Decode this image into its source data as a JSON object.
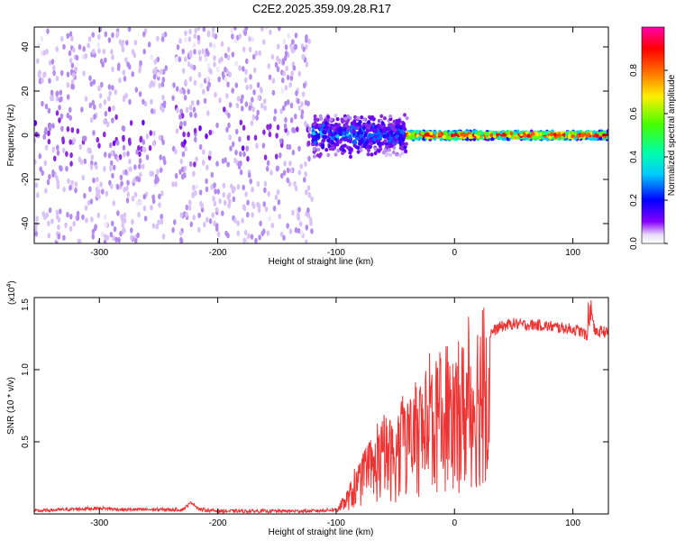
{
  "chart_data": [
    {
      "type": "heatmap",
      "title": "C2E2.2025.359.09.28.R17",
      "xlabel": "Height of straight line (km)",
      "ylabel": "Frequency (Hz)",
      "xlim": [
        -355,
        130
      ],
      "ylim": [
        -49,
        49
      ],
      "xticks": [
        -300,
        -200,
        -100,
        0,
        100
      ],
      "yticks": [
        -40,
        -20,
        0,
        20,
        40
      ],
      "colorbar": {
        "label": "Normalized spectral amplitude",
        "ticks": [
          0.0,
          0.2,
          0.4,
          0.6,
          0.8
        ],
        "range": [
          0,
          1
        ],
        "colormap": "rainbow (violet to magenta)"
      },
      "regions": [
        {
          "x": [
            -355,
            -243
          ],
          "freq_spread": 49,
          "level": 0.15,
          "note": "broadband scattered noise"
        },
        {
          "x": [
            -238,
            -120
          ],
          "freq_spread": 49,
          "level": 0.15,
          "note": "broadband scattered noise"
        },
        {
          "x": [
            -120,
            -40
          ],
          "freq_center": 0,
          "freq_halfwidth": 10,
          "level": 0.4
        },
        {
          "x": [
            -40,
            130
          ],
          "freq_center": 0,
          "freq_halfwidth": 2,
          "level": 0.9,
          "note": "narrow band near 0 Hz"
        }
      ]
    },
    {
      "type": "line",
      "xlabel": "Height of straight line (km)",
      "ylabel": "SNR (10 * v/v)",
      "yscale_note": "(x10",
      "yscale_exp": "4",
      "xlim": [
        -355,
        130
      ],
      "ylim": [
        0,
        1.5
      ],
      "xticks": [
        -300,
        -200,
        -100,
        0,
        100
      ],
      "yticks": [
        "0.5",
        "1.0",
        "1.5"
      ],
      "series": [
        {
          "color": "#ee3333",
          "x": [
            -355,
            -330,
            -300,
            -280,
            -250,
            -230,
            -222,
            -215,
            -200,
            -180,
            -150,
            -120,
            -100,
            -95,
            -90,
            -80,
            -70,
            -60,
            -55,
            -50,
            -45,
            -40,
            -35,
            -30,
            -25,
            -20,
            -15,
            -10,
            -5,
            0,
            5,
            10,
            15,
            20,
            25,
            30,
            35,
            40,
            50,
            60,
            70,
            80,
            90,
            100,
            105,
            110,
            113,
            115,
            118,
            120,
            125,
            130
          ],
          "y": [
            0.02,
            0.03,
            0.04,
            0.03,
            0.03,
            0.03,
            0.08,
            0.03,
            0.02,
            0.02,
            0.02,
            0.02,
            0.03,
            0.08,
            0.15,
            0.3,
            0.4,
            0.55,
            0.55,
            0.5,
            0.65,
            0.7,
            0.6,
            0.8,
            0.75,
            0.9,
            0.85,
            0.95,
            1.0,
            0.9,
            0.95,
            1.02,
            1.08,
            1.15,
            1.2,
            1.25,
            1.28,
            1.3,
            1.32,
            1.31,
            1.31,
            1.3,
            1.29,
            1.28,
            1.27,
            1.25,
            1.2,
            1.48,
            1.28,
            1.25,
            1.27,
            1.25
          ]
        }
      ]
    }
  ]
}
